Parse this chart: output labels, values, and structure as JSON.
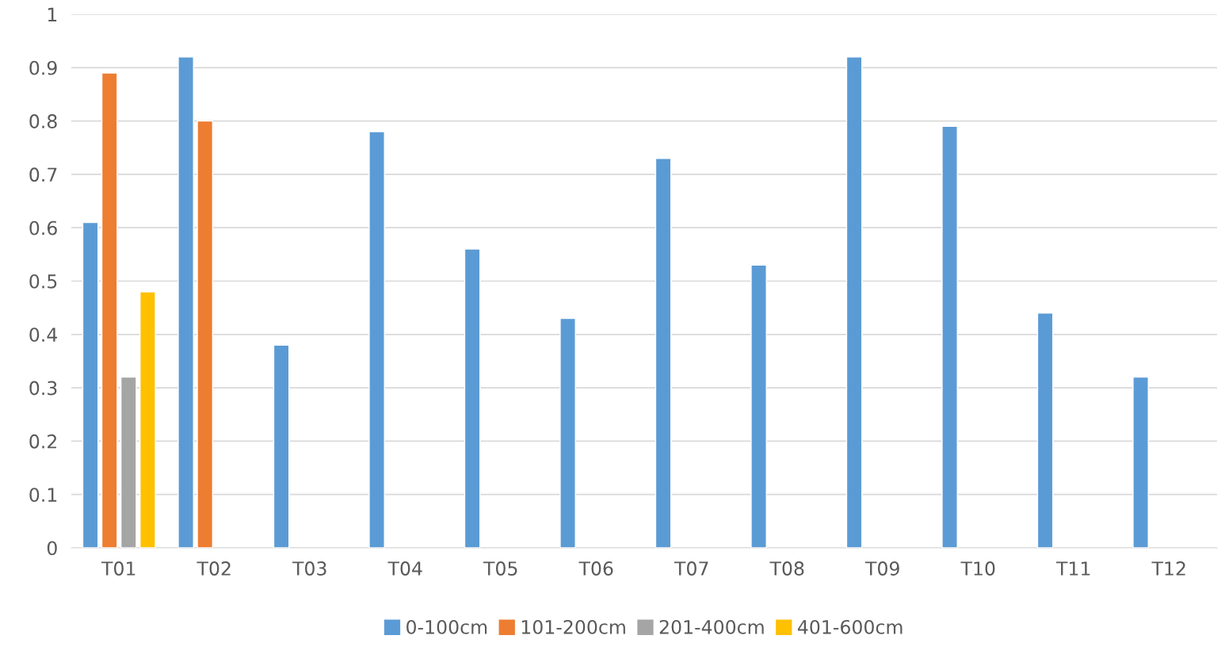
{
  "chart_data": {
    "type": "bar",
    "categories": [
      "T01",
      "T02",
      "T03",
      "T04",
      "T05",
      "T06",
      "T07",
      "T08",
      "T09",
      "T10",
      "T11",
      "T12"
    ],
    "series": [
      {
        "name": "0-100cm",
        "color": "#5b9bd5",
        "values": [
          0.61,
          0.92,
          0.38,
          0.78,
          0.56,
          0.43,
          0.73,
          0.53,
          0.92,
          0.79,
          0.44,
          0.32
        ]
      },
      {
        "name": "101-200cm",
        "color": "#ed7d31",
        "values": [
          0.89,
          0.8,
          null,
          null,
          null,
          null,
          null,
          null,
          null,
          null,
          null,
          null
        ]
      },
      {
        "name": "201-400cm",
        "color": "#a5a5a5",
        "values": [
          0.32,
          null,
          null,
          null,
          null,
          null,
          null,
          null,
          null,
          null,
          null,
          null
        ]
      },
      {
        "name": "401-600cm",
        "color": "#ffc000",
        "values": [
          0.48,
          null,
          null,
          null,
          null,
          null,
          null,
          null,
          null,
          null,
          null,
          null
        ]
      }
    ],
    "ylim": [
      0,
      1
    ],
    "yticks": [
      0,
      0.1,
      0.2,
      0.3,
      0.4,
      0.5,
      0.6,
      0.7,
      0.8,
      0.9,
      1
    ],
    "grid": "y",
    "legend": "bottom"
  }
}
